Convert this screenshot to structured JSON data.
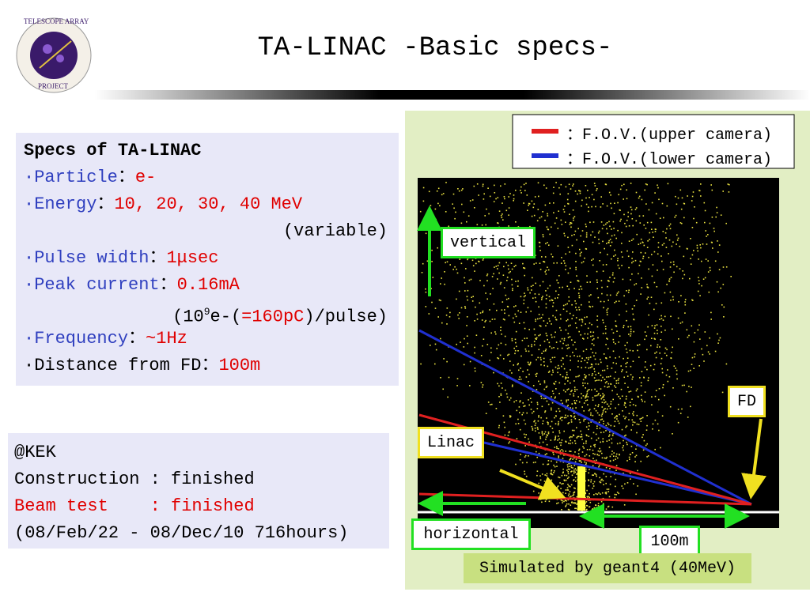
{
  "header": {
    "title": "TA-LINAC -Basic specs-",
    "logo_top": "TELESCOPE ARRAY",
    "logo_bottom": "PROJECT"
  },
  "specs": {
    "heading": "Specs of TA-LINAC",
    "particle": {
      "label": "·Particle",
      "sep": "：",
      "value": "e-"
    },
    "energy": {
      "label": "·Energy",
      "sep": "：",
      "value": "10, 20, 30, 40 MeV",
      "note": "(variable)"
    },
    "pulse_width": {
      "label": "·Pulse width",
      "sep": "：",
      "value": "1μsec"
    },
    "peak_current": {
      "label": "·Peak current",
      "sep": "：",
      "value": "0.16mA",
      "note_open": "(10",
      "note_exp": "9",
      "note_mid": "e-(",
      "note_charge": "=160pC",
      "note_close": ")/pulse)"
    },
    "frequency": {
      "label": "·Frequency",
      "sep": "：",
      "value": "~1Hz"
    },
    "distance": {
      "label": "·Distance from FD",
      "sep": "：",
      "value": "100m"
    }
  },
  "kek": {
    "site": "@KEK",
    "construction": "Construction : finished",
    "beam_test": "Beam test    : finished",
    "period": "(08/Feb/22 - 08/Dec/10 716hours)"
  },
  "figure": {
    "legend_upper": "：F.O.V.(upper camera)",
    "legend_lower": "：F.O.V.(lower camera)",
    "vertical": "vertical",
    "horizontal": "horizontal",
    "distance": "100m",
    "linac": "Linac",
    "fd": "FD",
    "caption": "Simulated by geant4 (40MeV)"
  }
}
